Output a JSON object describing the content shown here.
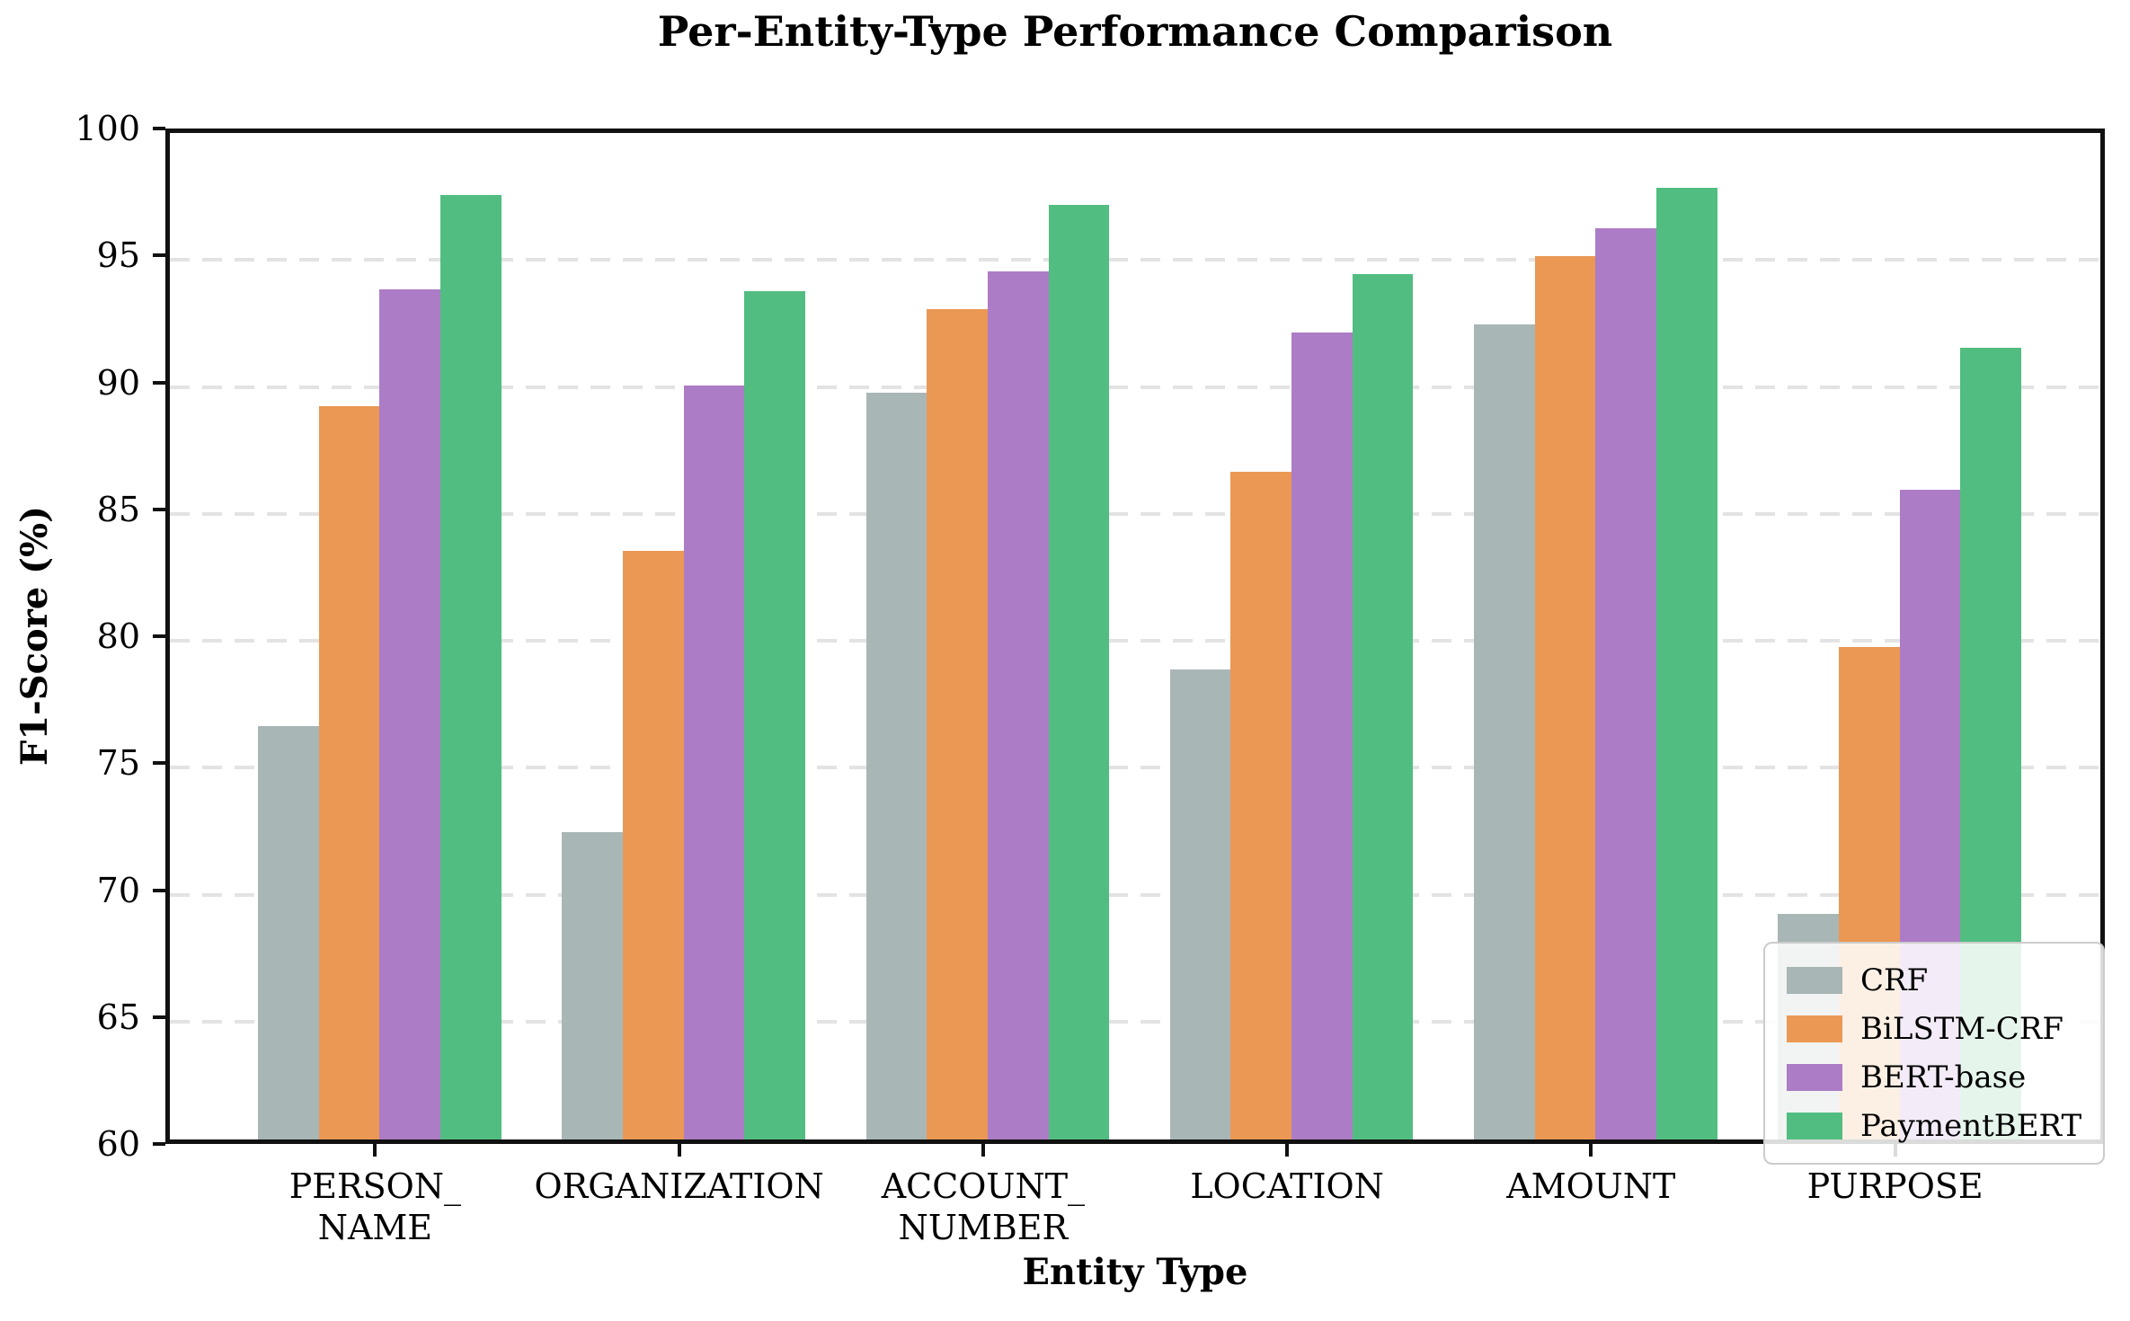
{
  "chart_data": {
    "type": "bar",
    "title": "Per-Entity-Type Performance Comparison",
    "xlabel": "Entity Type",
    "ylabel": "F1-Score (%)",
    "ylim": [
      60,
      100
    ],
    "yticks": [
      60,
      65,
      70,
      75,
      80,
      85,
      90,
      95,
      100
    ],
    "grid": "horizontal dashed",
    "legend_position": "lower right",
    "categories": [
      "PERSON_\nNAME",
      "ORGANIZATION",
      "ACCOUNT_\nNUMBER",
      "LOCATION",
      "AMOUNT",
      "PURPOSE"
    ],
    "series": [
      {
        "name": "CRF",
        "color": "#a9b6b6",
        "values": [
          76.3,
          72.1,
          89.4,
          78.5,
          92.1,
          68.9
        ]
      },
      {
        "name": "BiLSTM-CRF",
        "color": "#ea9854",
        "values": [
          88.9,
          83.2,
          92.7,
          86.3,
          94.8,
          79.4
        ]
      },
      {
        "name": "BERT-base",
        "color": "#ad7cc6",
        "values": [
          93.5,
          89.7,
          94.2,
          91.8,
          95.9,
          85.6
        ]
      },
      {
        "name": "PaymentBERT",
        "color": "#52bd80",
        "values": [
          97.2,
          93.4,
          96.8,
          94.1,
          97.5,
          91.2
        ]
      }
    ]
  }
}
